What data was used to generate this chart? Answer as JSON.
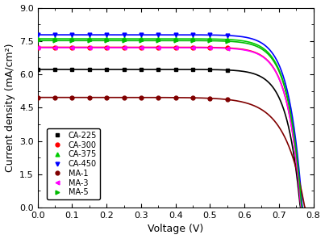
{
  "xlabel": "Voltage (V)",
  "ylabel": "Current density (mA/cm²)",
  "xlim": [
    0,
    0.8
  ],
  "ylim": [
    0,
    9.0
  ],
  "xticks": [
    0.0,
    0.1,
    0.2,
    0.3,
    0.4,
    0.5,
    0.6,
    0.7,
    0.8
  ],
  "yticks": [
    0.0,
    1.5,
    3.0,
    4.5,
    6.0,
    7.5,
    9.0
  ],
  "series": [
    {
      "label": "CA-225",
      "color": "#000000",
      "marker": "s",
      "jsc": 6.22,
      "voc": 0.762,
      "n_ideal": 1.5
    },
    {
      "label": "CA-300",
      "color": "#ff0000",
      "marker": "o",
      "jsc": 7.22,
      "voc": 0.764,
      "n_ideal": 1.5
    },
    {
      "label": "CA-375",
      "color": "#00cc00",
      "marker": "^",
      "jsc": 7.6,
      "voc": 0.766,
      "n_ideal": 1.5
    },
    {
      "label": "CA-450",
      "color": "#0000ff",
      "marker": "v",
      "jsc": 7.78,
      "voc": 0.768,
      "n_ideal": 1.5
    },
    {
      "label": "MA-1",
      "color": "#800000",
      "marker": "o",
      "jsc": 4.96,
      "voc": 0.775,
      "n_ideal": 2.2
    },
    {
      "label": "MA-3",
      "color": "#ff00ff",
      "marker": "<",
      "jsc": 7.2,
      "voc": 0.764,
      "n_ideal": 1.5
    },
    {
      "label": "MA-5",
      "color": "#00bb00",
      "marker": ">",
      "jsc": 7.52,
      "voc": 0.766,
      "n_ideal": 1.5
    }
  ],
  "marker_voltages": [
    0.0,
    0.05,
    0.1,
    0.15,
    0.2,
    0.25,
    0.3,
    0.35,
    0.4,
    0.45,
    0.5,
    0.55
  ],
  "figsize": [
    4.03,
    2.96
  ],
  "dpi": 100
}
